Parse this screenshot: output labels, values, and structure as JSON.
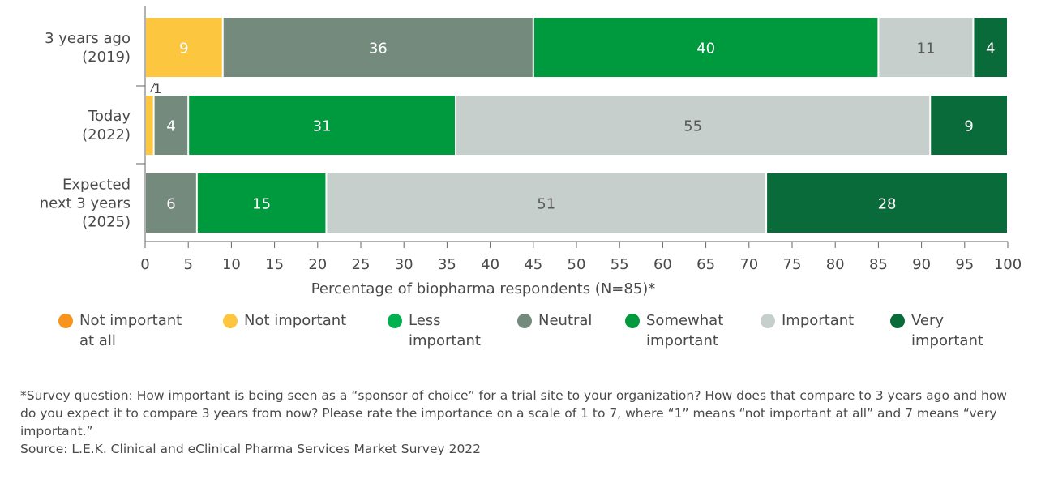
{
  "chart_data": {
    "type": "bar",
    "orientation": "horizontal",
    "stacked": true,
    "categories": [
      [
        "3 years ago",
        "(2019)"
      ],
      [
        "Today",
        "(2022)"
      ],
      [
        "Expected",
        "next 3 years",
        "(2025)"
      ]
    ],
    "series": [
      {
        "name": "Not important at all",
        "color": "#F7941D",
        "values": [
          0,
          0,
          0
        ]
      },
      {
        "name": "Not important",
        "color": "#FDC63F",
        "values": [
          9,
          1,
          0
        ]
      },
      {
        "name": "Less important",
        "color": "#00B04F",
        "values": [
          0,
          0,
          0
        ]
      },
      {
        "name": "Neutral",
        "color": "#748A7D",
        "values": [
          36,
          4,
          6
        ]
      },
      {
        "name": "Somewhat important",
        "color": "#009A3E",
        "values": [
          40,
          31,
          15
        ]
      },
      {
        "name": "Important",
        "color": "#C7CFCC",
        "values": [
          11,
          55,
          51
        ]
      },
      {
        "name": "Very important",
        "color": "#0A6B3A",
        "values": [
          4,
          9,
          28
        ]
      }
    ],
    "xlabel": "Percentage of biopharma respondents (N=85)*",
    "xlim": [
      0,
      100
    ],
    "xticks": [
      0,
      5,
      10,
      15,
      20,
      25,
      30,
      35,
      40,
      45,
      50,
      55,
      60,
      65,
      70,
      75,
      80,
      85,
      90,
      95,
      100
    ],
    "grid": false,
    "legend_position": "bottom"
  },
  "legend": [
    {
      "lines": [
        "Not important",
        "at all"
      ],
      "color": "#F7941D"
    },
    {
      "lines": [
        "Not important"
      ],
      "color": "#FDC63F"
    },
    {
      "lines": [
        "Less",
        "important"
      ],
      "color": "#00B04F"
    },
    {
      "lines": [
        "Neutral"
      ],
      "color": "#748A7D"
    },
    {
      "lines": [
        "Somewhat",
        "important"
      ],
      "color": "#009A3E"
    },
    {
      "lines": [
        "Important"
      ],
      "color": "#C7CFCC"
    },
    {
      "lines": [
        "Very",
        "important"
      ],
      "color": "#0A6B3A"
    }
  ],
  "notes": {
    "survey": "*Survey question: How important is being seen as a “sponsor of choice” for a trial site to your organization? How does that compare to 3 years ago and how do you expect it to compare 3 years from now? Please rate the importance on a scale of 1 to 7, where “1” means “not important at all” and 7 means “very important.”",
    "source": "Source: L.E.K. Clinical and eClinical Pharma Services Market Survey 2022"
  }
}
